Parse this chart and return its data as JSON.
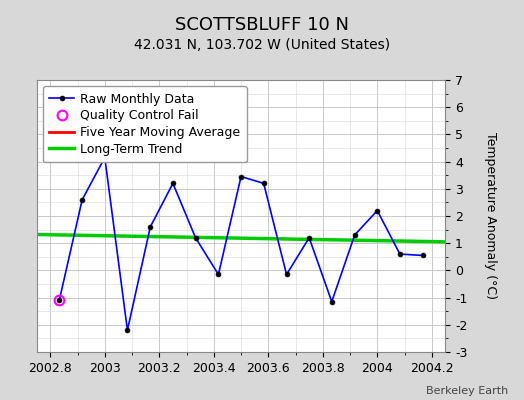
{
  "title": "SCOTTSBLUFF 10 N",
  "subtitle": "42.031 N, 103.702 W (United States)",
  "ylabel": "Temperature Anomaly (°C)",
  "watermark": "Berkeley Earth",
  "xlim": [
    2002.75,
    2004.25
  ],
  "ylim": [
    -3,
    7
  ],
  "yticks": [
    -3,
    -2,
    -1,
    0,
    1,
    2,
    3,
    4,
    5,
    6,
    7
  ],
  "xticks": [
    2002.8,
    2003.0,
    2003.2,
    2003.4,
    2003.6,
    2003.8,
    2004.0,
    2004.2
  ],
  "xtick_labels": [
    "2002.8",
    "2003",
    "2003.2",
    "2003.4",
    "2003.6",
    "2003.8",
    "2004",
    "2004.2"
  ],
  "raw_x": [
    2002.833,
    2002.917,
    2003.0,
    2003.083,
    2003.167,
    2003.25,
    2003.333,
    2003.417,
    2003.5,
    2003.583,
    2003.667,
    2003.75,
    2003.833,
    2003.917,
    2004.0,
    2004.083,
    2004.167
  ],
  "raw_y": [
    -1.1,
    2.6,
    4.15,
    -2.2,
    1.6,
    3.2,
    1.2,
    -0.15,
    3.45,
    3.2,
    -0.15,
    1.2,
    -1.15,
    1.3,
    2.2,
    0.6,
    0.55
  ],
  "qc_fail_x": [
    2002.833
  ],
  "qc_fail_y": [
    -1.1
  ],
  "trend_x": [
    2002.75,
    2004.25
  ],
  "trend_y": [
    1.32,
    1.05
  ],
  "raw_color": "#0000ff",
  "raw_marker_color": "#000000",
  "qc_color": "#ff00ff",
  "trend_color": "#00cc00",
  "moving_avg_color": "#ff0000",
  "bg_color": "#d8d8d8",
  "plot_bg_color": "#ffffff",
  "title_fontsize": 13,
  "subtitle_fontsize": 10,
  "legend_fontsize": 9,
  "tick_fontsize": 9,
  "ylabel_fontsize": 9
}
